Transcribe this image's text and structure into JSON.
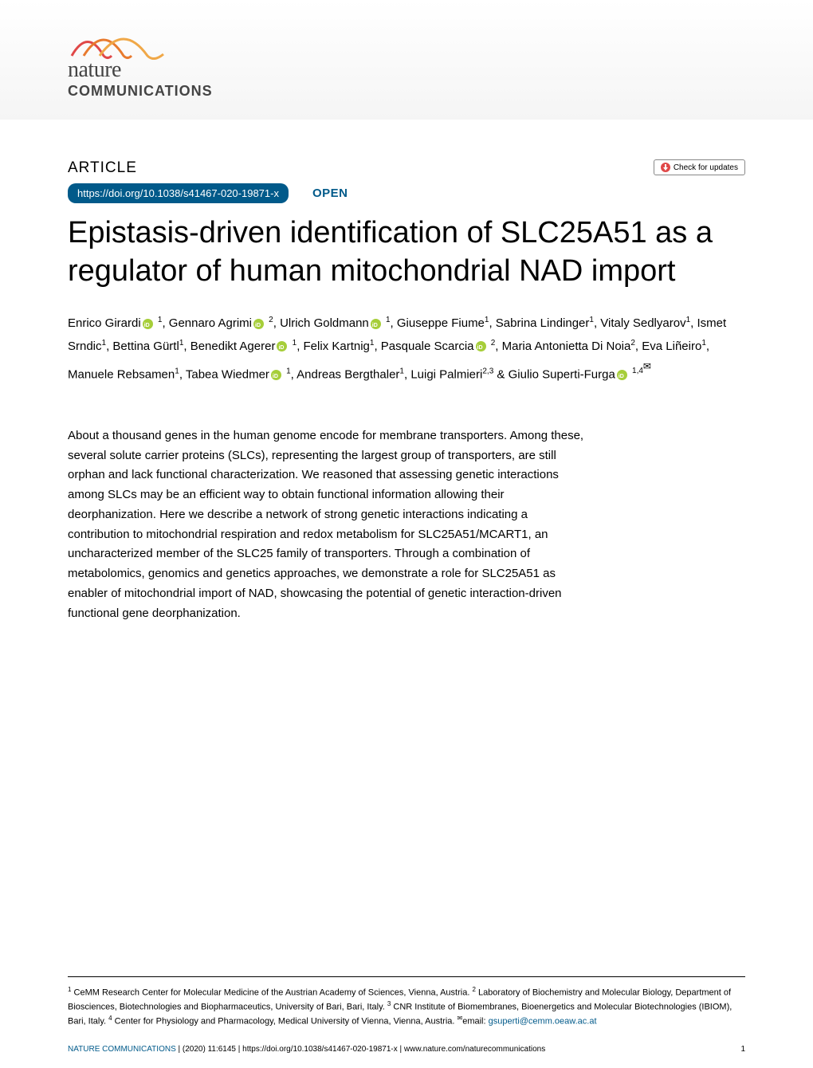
{
  "logo": {
    "nature": "nature",
    "communications": "COMMUNICATIONS",
    "wave_colors": [
      "#e04848",
      "#e87a2e",
      "#f0a848"
    ]
  },
  "article_label": "ARTICLE",
  "check_updates": "Check for updates",
  "doi": "https://doi.org/10.1038/s41467-020-19871-x",
  "open": "OPEN",
  "title": "Epistasis-driven identification of SLC25A51 as a regulator of human mitochondrial NAD import",
  "authors_html": "Enrico Girardi{ORCID} <sup>1</sup>, Gennaro Agrimi{ORCID} <sup>2</sup>, Ulrich Goldmann{ORCID} <sup>1</sup>, Giuseppe Fiume<sup>1</sup>, Sabrina Lindinger<sup>1</sup>, Vitaly Sedlyarov<sup>1</sup>, Ismet Srndic<sup>1</sup>, Bettina Gürtl<sup>1</sup>, Benedikt Agerer{ORCID} <sup>1</sup>, Felix Kartnig<sup>1</sup>, Pasquale Scarcia{ORCID} <sup>2</sup>, Maria Antonietta Di Noia<sup>2</sup>, Eva Liñeiro<sup>1</sup>, Manuele Rebsamen<sup>1</sup>, Tabea Wiedmer{ORCID} <sup>1</sup>, Andreas Bergthaler<sup>1</sup>, Luigi Palmieri<sup>2,3</sup> & Giulio Superti-Furga{ORCID} <sup>1,4{MAIL}</sup>",
  "abstract": "About a thousand genes in the human genome encode for membrane transporters. Among these, several solute carrier proteins (SLCs), representing the largest group of transporters, are still orphan and lack functional characterization. We reasoned that assessing genetic interactions among SLCs may be an efficient way to obtain functional information allowing their deorphanization. Here we describe a network of strong genetic interactions indicating a contribution to mitochondrial respiration and redox metabolism for SLC25A51/MCART1, an uncharacterized member of the SLC25 family of transporters. Through a combination of metabolomics, genomics and genetics approaches, we demonstrate a role for SLC25A51 as enabler of mitochondrial import of NAD, showcasing the potential of genetic interaction-driven functional gene deorphanization.",
  "affiliations_html": "<sup>1</sup> CeMM Research Center for Molecular Medicine of the Austrian Academy of Sciences, Vienna, Austria. <sup>2</sup> Laboratory of Biochemistry and Molecular Biology, Department of Biosciences, Biotechnologies and Biopharmaceutics, University of Bari, Bari, Italy. <sup>3</sup> CNR Institute of Biomembranes, Bioenergetics and Molecular Biotechnologies (IBIOM), Bari, Italy. <sup>4</sup> Center for Physiology and Pharmacology, Medical University of Vienna, Vienna, Austria. <sup>✉</sup>email: ",
  "email": "gsuperti@cemm.oeaw.ac.at",
  "footer": {
    "journal": "NATURE COMMUNICATIONS",
    "citation": " |         (2020) 11:6145  | https://doi.org/10.1038/s41467-020-19871-x | www.nature.com/naturecommunications",
    "page": "1"
  },
  "colors": {
    "brand_blue": "#015a8a",
    "orcid_green": "#a6ce39",
    "check_red": "#e04848"
  }
}
